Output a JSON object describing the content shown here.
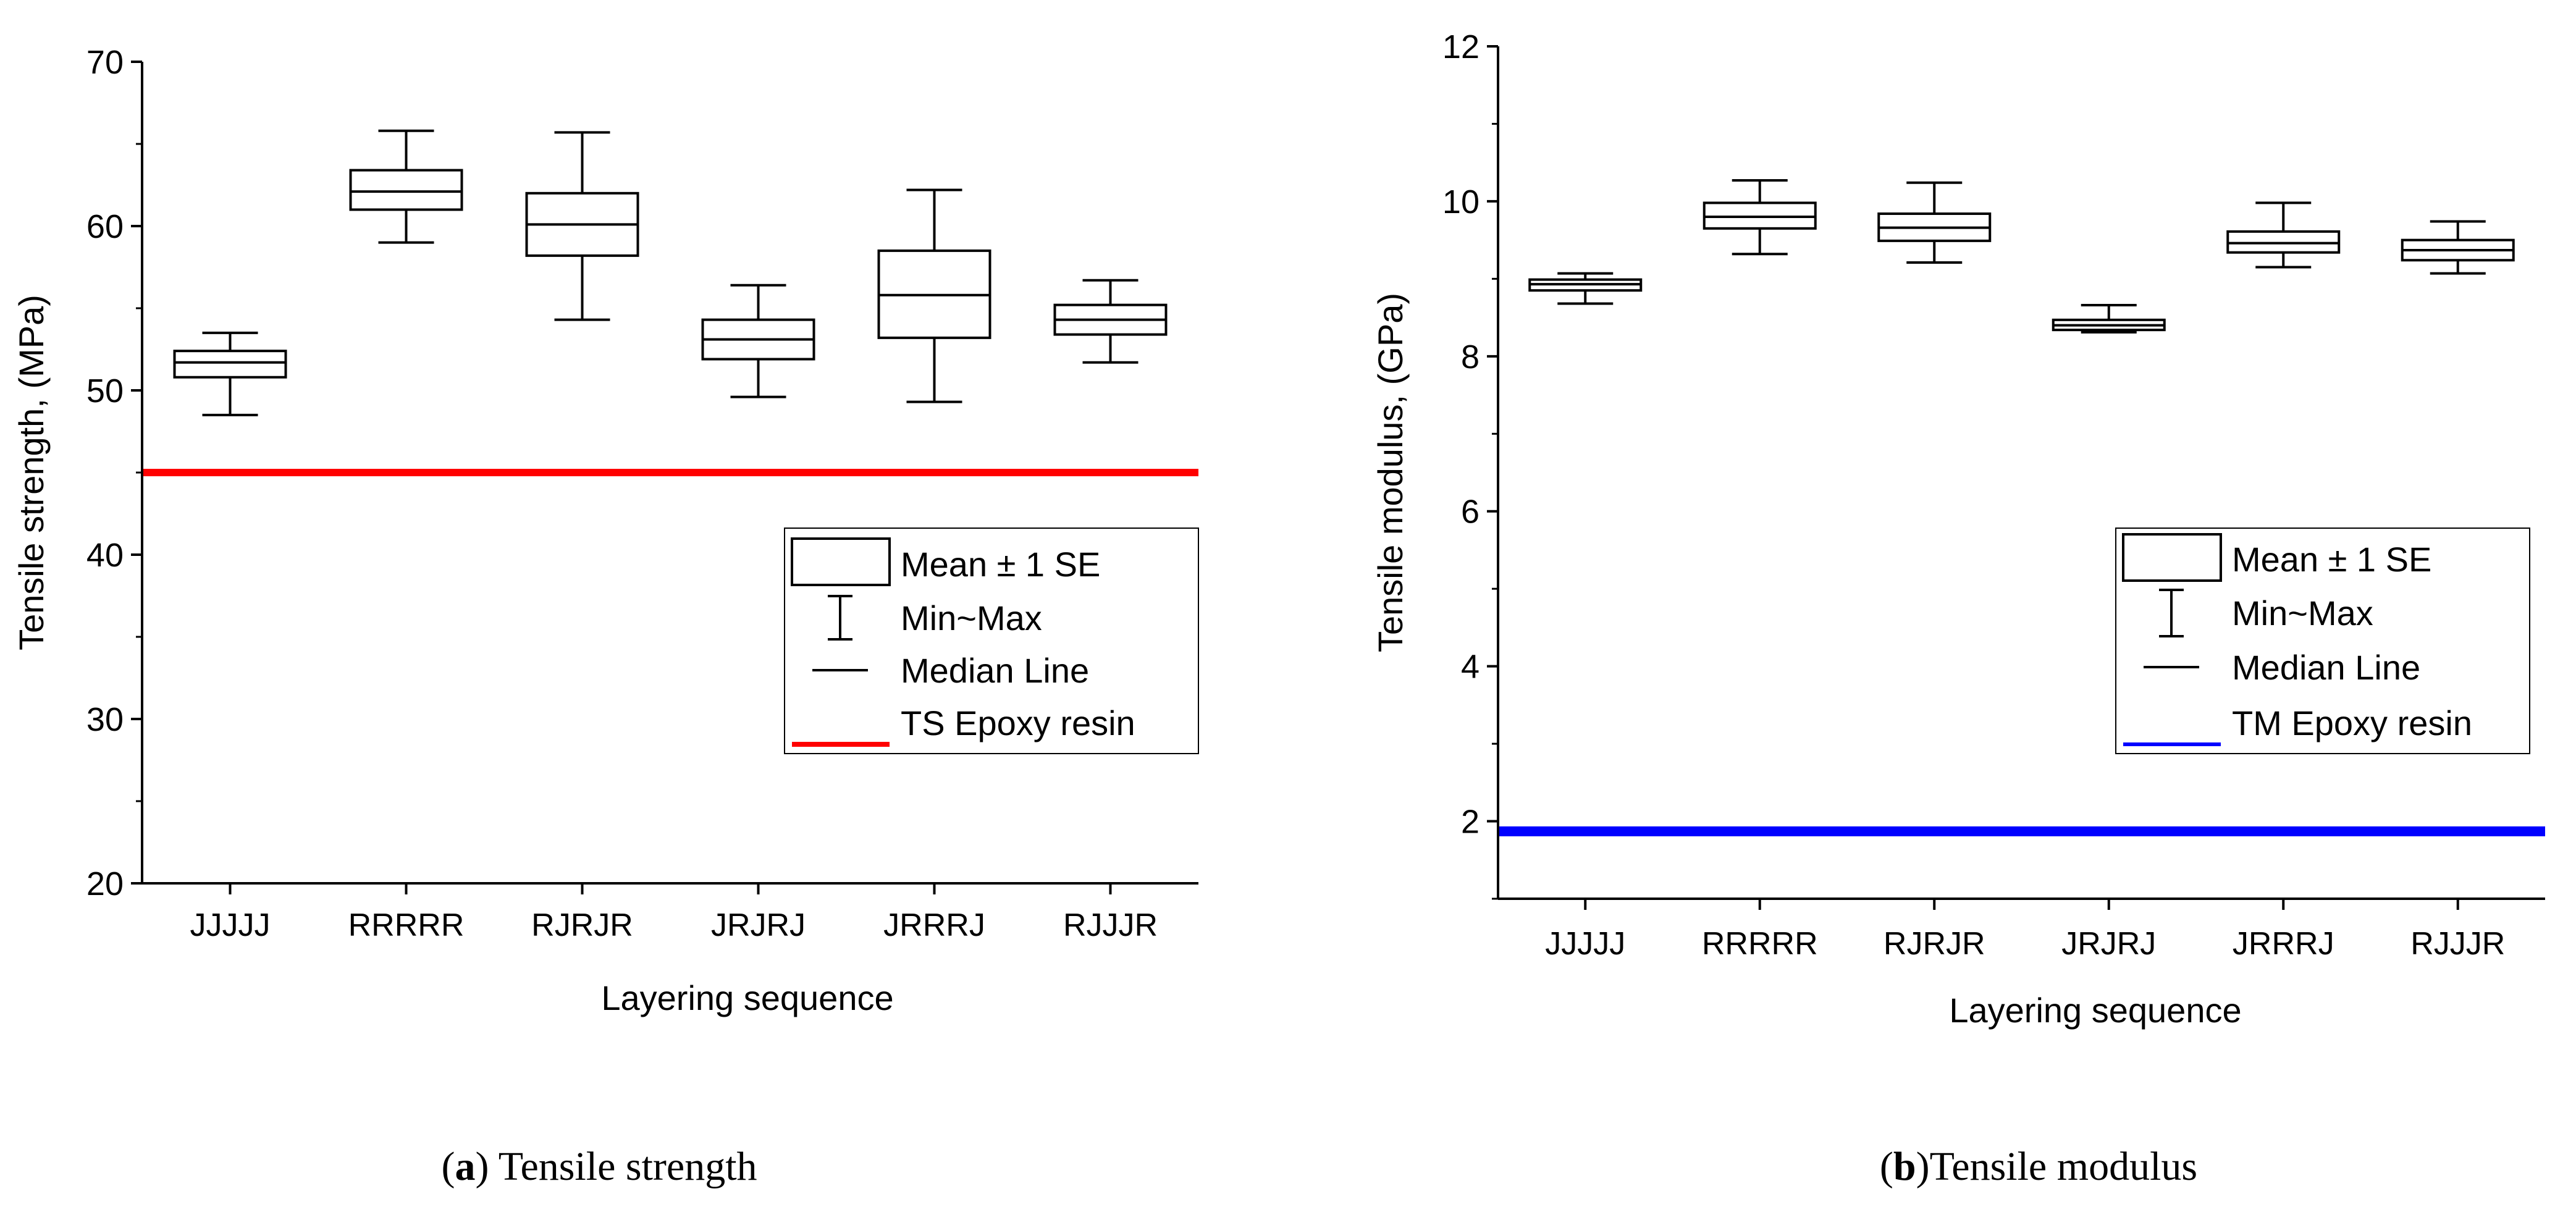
{
  "chart_data": [
    {
      "type": "box",
      "caption_letter": "a",
      "caption_text": " Tensile strength",
      "ylabel": "Tensile strength, (MPa)",
      "xlabel": "Layering sequence",
      "ylim": [
        20,
        70
      ],
      "yticks": [
        "20",
        "30",
        "40",
        "50",
        "60",
        "70"
      ],
      "categories": [
        "JJJJJ",
        "RRRRR",
        "RJRJR",
        "JRJRJ",
        "JRRRJ",
        "RJJJR"
      ],
      "boxes": [
        {
          "min": 48.5,
          "q1": 50.8,
          "median": 51.7,
          "q3": 52.4,
          "max": 53.5
        },
        {
          "min": 59.0,
          "q1": 61.0,
          "median": 62.1,
          "q3": 63.4,
          "max": 65.8
        },
        {
          "min": 54.3,
          "q1": 58.2,
          "median": 60.1,
          "q3": 62.0,
          "max": 65.7
        },
        {
          "min": 49.6,
          "q1": 51.9,
          "median": 53.1,
          "q3": 54.3,
          "max": 56.4
        },
        {
          "min": 49.3,
          "q1": 53.2,
          "median": 55.8,
          "q3": 58.5,
          "max": 62.2
        },
        {
          "min": 51.7,
          "q1": 53.4,
          "median": 54.3,
          "q3": 55.2,
          "max": 56.7
        }
      ],
      "reference_line": {
        "name": "TS Epoxy resin",
        "value": 45.0,
        "color": "#ff0000"
      },
      "legend": {
        "placement": "right",
        "entries": [
          "Mean ± 1 SE",
          "Min~Max",
          "Median Line",
          "TS Epoxy resin"
        ]
      },
      "grid": false
    },
    {
      "type": "box",
      "caption_letter": "b",
      "caption_text": ")Tensile modulus",
      "ylabel": "Tensile modulus, (GPa)",
      "xlabel": "Layering sequence",
      "ylim": [
        1,
        12
      ],
      "yticks": [
        "2",
        "4",
        "6",
        "8",
        "10",
        "12"
      ],
      "categories": [
        "JJJJJ",
        "RRRRR",
        "RJRJR",
        "JRJRJ",
        "JRRRJ",
        "RJJJR"
      ],
      "boxes": [
        {
          "min": 8.68,
          "q1": 8.85,
          "median": 8.93,
          "q3": 8.99,
          "max": 9.07
        },
        {
          "min": 9.32,
          "q1": 9.65,
          "median": 9.8,
          "q3": 9.98,
          "max": 10.27
        },
        {
          "min": 9.21,
          "q1": 9.49,
          "median": 9.66,
          "q3": 9.84,
          "max": 10.24
        },
        {
          "min": 8.31,
          "q1": 8.34,
          "median": 8.4,
          "q3": 8.47,
          "max": 8.66
        },
        {
          "min": 9.15,
          "q1": 9.34,
          "median": 9.46,
          "q3": 9.61,
          "max": 9.98
        },
        {
          "min": 9.07,
          "q1": 9.24,
          "median": 9.37,
          "q3": 9.5,
          "max": 9.74
        }
      ],
      "reference_line": {
        "name": "TM Epoxy resin",
        "value": 1.87,
        "color": "#0000ff"
      },
      "legend": {
        "placement": "right",
        "entries": [
          "Mean ± 1 SE",
          "Min~Max",
          "Median Line",
          "TM Epoxy resin"
        ]
      },
      "grid": false
    }
  ]
}
